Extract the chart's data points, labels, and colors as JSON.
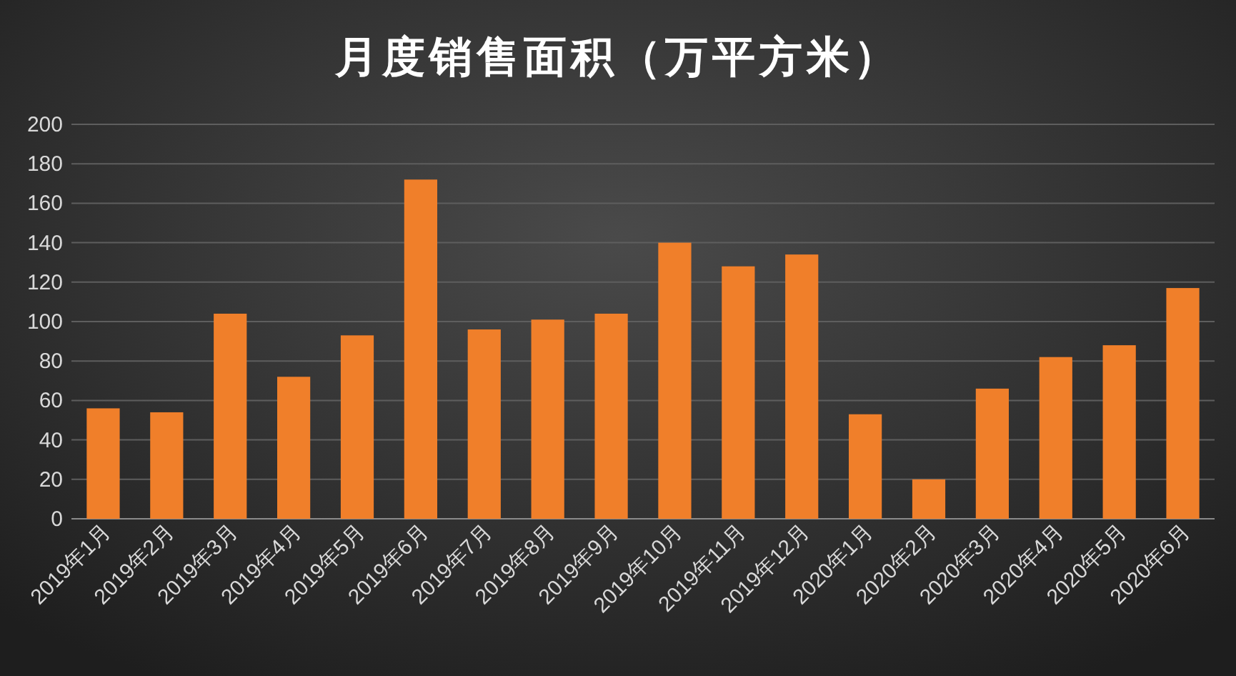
{
  "chart_data": {
    "type": "bar",
    "title": "月度销售面积（万平方米）",
    "categories": [
      "2019年1月",
      "2019年2月",
      "2019年3月",
      "2019年4月",
      "2019年5月",
      "2019年6月",
      "2019年7月",
      "2019年8月",
      "2019年9月",
      "2019年10月",
      "2019年11月",
      "2019年12月",
      "2020年1月",
      "2020年2月",
      "2020年3月",
      "2020年4月",
      "2020年5月",
      "2020年6月"
    ],
    "values": [
      56,
      54,
      104,
      72,
      93,
      172,
      96,
      101,
      104,
      140,
      128,
      134,
      53,
      20,
      66,
      82,
      88,
      117
    ],
    "color": "#f07f2a",
    "ylim": [
      0,
      200
    ],
    "yticks": [
      0,
      20,
      40,
      60,
      80,
      100,
      120,
      140,
      160,
      180,
      200
    ],
    "grid": "y"
  }
}
